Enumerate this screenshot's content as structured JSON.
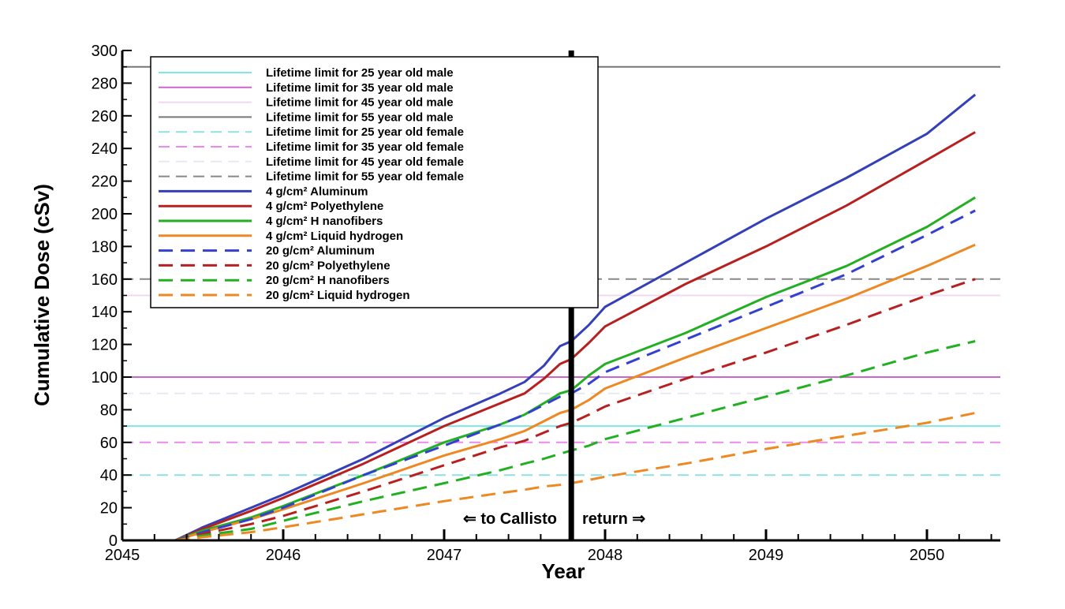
{
  "chart_data": {
    "type": "line",
    "xlabel": "Year",
    "ylabel": "Cumulative Dose (cSv)",
    "xlim": [
      2045,
      2050.6
    ],
    "ylim": [
      0,
      300
    ],
    "x_ticks": [
      "2045",
      "2046",
      "2047",
      "2048",
      "2049",
      "2050"
    ],
    "y_ticks": [
      "0",
      "20",
      "40",
      "60",
      "80",
      "100",
      "120",
      "140",
      "160",
      "180",
      "200",
      "220",
      "240",
      "260",
      "280",
      "300"
    ],
    "grid": false,
    "legend_position": "top-left",
    "annotations": {
      "outbound": "⇐ to Callisto",
      "return": "return ⇒",
      "divider_year": 2047.79
    },
    "reference_lines": [
      {
        "name": "Lifetime limit for 25 year old male",
        "y": 70,
        "color": "#7fe6e6",
        "dash": false
      },
      {
        "name": "Lifetime limit for 35 year old male",
        "y": 100,
        "color": "#cc66cc",
        "dash": false
      },
      {
        "name": "Lifetime limit for 45 year old male",
        "y": 150,
        "color": "#f0d8f0",
        "dash": false
      },
      {
        "name": "Lifetime limit for 55 year old male",
        "y": 290,
        "color": "#777777",
        "dash": false
      },
      {
        "name": "Lifetime limit for 25 year old female",
        "y": 40,
        "color": "#8fe0e0",
        "dash": true
      },
      {
        "name": "Lifetime limit for 35 year old female",
        "y": 60,
        "color": "#ee88ee",
        "dash": true
      },
      {
        "name": "Lifetime limit for 45 year old female",
        "y": 90,
        "color": "#e8e8f4",
        "dash": true
      },
      {
        "name": "Lifetime limit for 55 year old female",
        "y": 160,
        "color": "#888888",
        "dash": true
      }
    ],
    "series": [
      {
        "name": "4 g/cm² Aluminum",
        "color": "#3340b8",
        "dash": false,
        "x": [
          2045.33,
          2045.5,
          2045.8,
          2046.0,
          2046.5,
          2047.0,
          2047.35,
          2047.5,
          2047.62,
          2047.72,
          2047.79,
          2047.9,
          2048.0,
          2048.5,
          2049.0,
          2049.5,
          2050.0,
          2050.3
        ],
        "y": [
          0,
          8,
          20,
          28,
          50,
          75,
          90,
          97,
          107,
          119,
          122,
          132,
          143,
          170,
          197,
          222,
          249,
          273
        ]
      },
      {
        "name": "4 g/cm² Polyethylene",
        "color": "#b82020",
        "dash": false,
        "x": [
          2045.33,
          2045.5,
          2045.8,
          2046.0,
          2046.5,
          2047.0,
          2047.35,
          2047.5,
          2047.62,
          2047.72,
          2047.79,
          2047.9,
          2048.0,
          2048.5,
          2049.0,
          2049.5,
          2050.0,
          2050.3
        ],
        "y": [
          0,
          7,
          18,
          26,
          47,
          70,
          84,
          90,
          99,
          108,
          111,
          121,
          131,
          157,
          180,
          205,
          233,
          250
        ]
      },
      {
        "name": "4 g/cm² H nanofibers",
        "color": "#22b022",
        "dash": false,
        "x": [
          2045.33,
          2045.5,
          2045.8,
          2046.0,
          2046.5,
          2047.0,
          2047.35,
          2047.5,
          2047.62,
          2047.72,
          2047.79,
          2047.9,
          2048.0,
          2048.5,
          2049.0,
          2049.5,
          2050.0,
          2050.3
        ],
        "y": [
          0,
          6,
          14,
          21,
          40,
          60,
          71,
          77,
          84,
          90,
          92,
          101,
          108,
          127,
          149,
          168,
          192,
          210
        ]
      },
      {
        "name": "4 g/cm² Liquid hydrogen",
        "color": "#ee8822",
        "dash": false,
        "x": [
          2045.33,
          2045.5,
          2045.8,
          2046.0,
          2046.5,
          2047.0,
          2047.35,
          2047.5,
          2047.62,
          2047.72,
          2047.79,
          2047.9,
          2048.0,
          2048.5,
          2049.0,
          2049.5,
          2050.0,
          2050.3
        ],
        "y": [
          0,
          5,
          13,
          19,
          35,
          52,
          62,
          67,
          73,
          78,
          80,
          86,
          93,
          112,
          130,
          148,
          168,
          181
        ]
      },
      {
        "name": "20 g/cm² Aluminum",
        "color": "#3340d0",
        "dash": true,
        "x": [
          2045.33,
          2045.5,
          2045.8,
          2046.0,
          2046.5,
          2047.0,
          2047.35,
          2047.5,
          2047.62,
          2047.72,
          2047.79,
          2047.9,
          2048.0,
          2048.5,
          2049.0,
          2049.5,
          2050.0,
          2050.3
        ],
        "y": [
          0,
          5,
          13,
          20,
          40,
          58,
          71,
          77,
          83,
          88,
          90,
          96,
          103,
          123,
          143,
          163,
          187,
          202
        ]
      },
      {
        "name": "20 g/cm² Polyethylene",
        "color": "#b82020",
        "dash": true,
        "x": [
          2045.33,
          2045.5,
          2045.8,
          2046.0,
          2046.5,
          2047.0,
          2047.35,
          2047.5,
          2047.62,
          2047.72,
          2047.79,
          2047.9,
          2048.0,
          2048.5,
          2049.0,
          2049.5,
          2050.0,
          2050.3
        ],
        "y": [
          0,
          4,
          10,
          15,
          30,
          46,
          57,
          61,
          66,
          70,
          72,
          77,
          82,
          99,
          115,
          132,
          150,
          160
        ]
      },
      {
        "name": "20 g/cm² H nanofibers",
        "color": "#22b022",
        "dash": true,
        "x": [
          2045.33,
          2045.5,
          2045.8,
          2046.0,
          2046.5,
          2047.0,
          2047.35,
          2047.5,
          2047.62,
          2047.72,
          2047.79,
          2047.9,
          2048.0,
          2048.5,
          2049.0,
          2049.5,
          2050.0,
          2050.3
        ],
        "y": [
          0,
          3,
          7,
          12,
          24,
          35,
          43,
          47,
          50,
          53,
          55,
          58,
          62,
          75,
          88,
          101,
          115,
          122
        ]
      },
      {
        "name": "20 g/cm² Liquid hydrogen",
        "color": "#ee8822",
        "dash": true,
        "x": [
          2045.33,
          2045.5,
          2045.8,
          2046.0,
          2046.5,
          2047.0,
          2047.35,
          2047.5,
          2047.62,
          2047.72,
          2047.79,
          2047.9,
          2048.0,
          2048.5,
          2049.0,
          2049.5,
          2050.0,
          2050.3
        ],
        "y": [
          0,
          2,
          5,
          8,
          16,
          24,
          29,
          31,
          33,
          34,
          35,
          37,
          39,
          47,
          56,
          64,
          72,
          78
        ]
      }
    ]
  }
}
